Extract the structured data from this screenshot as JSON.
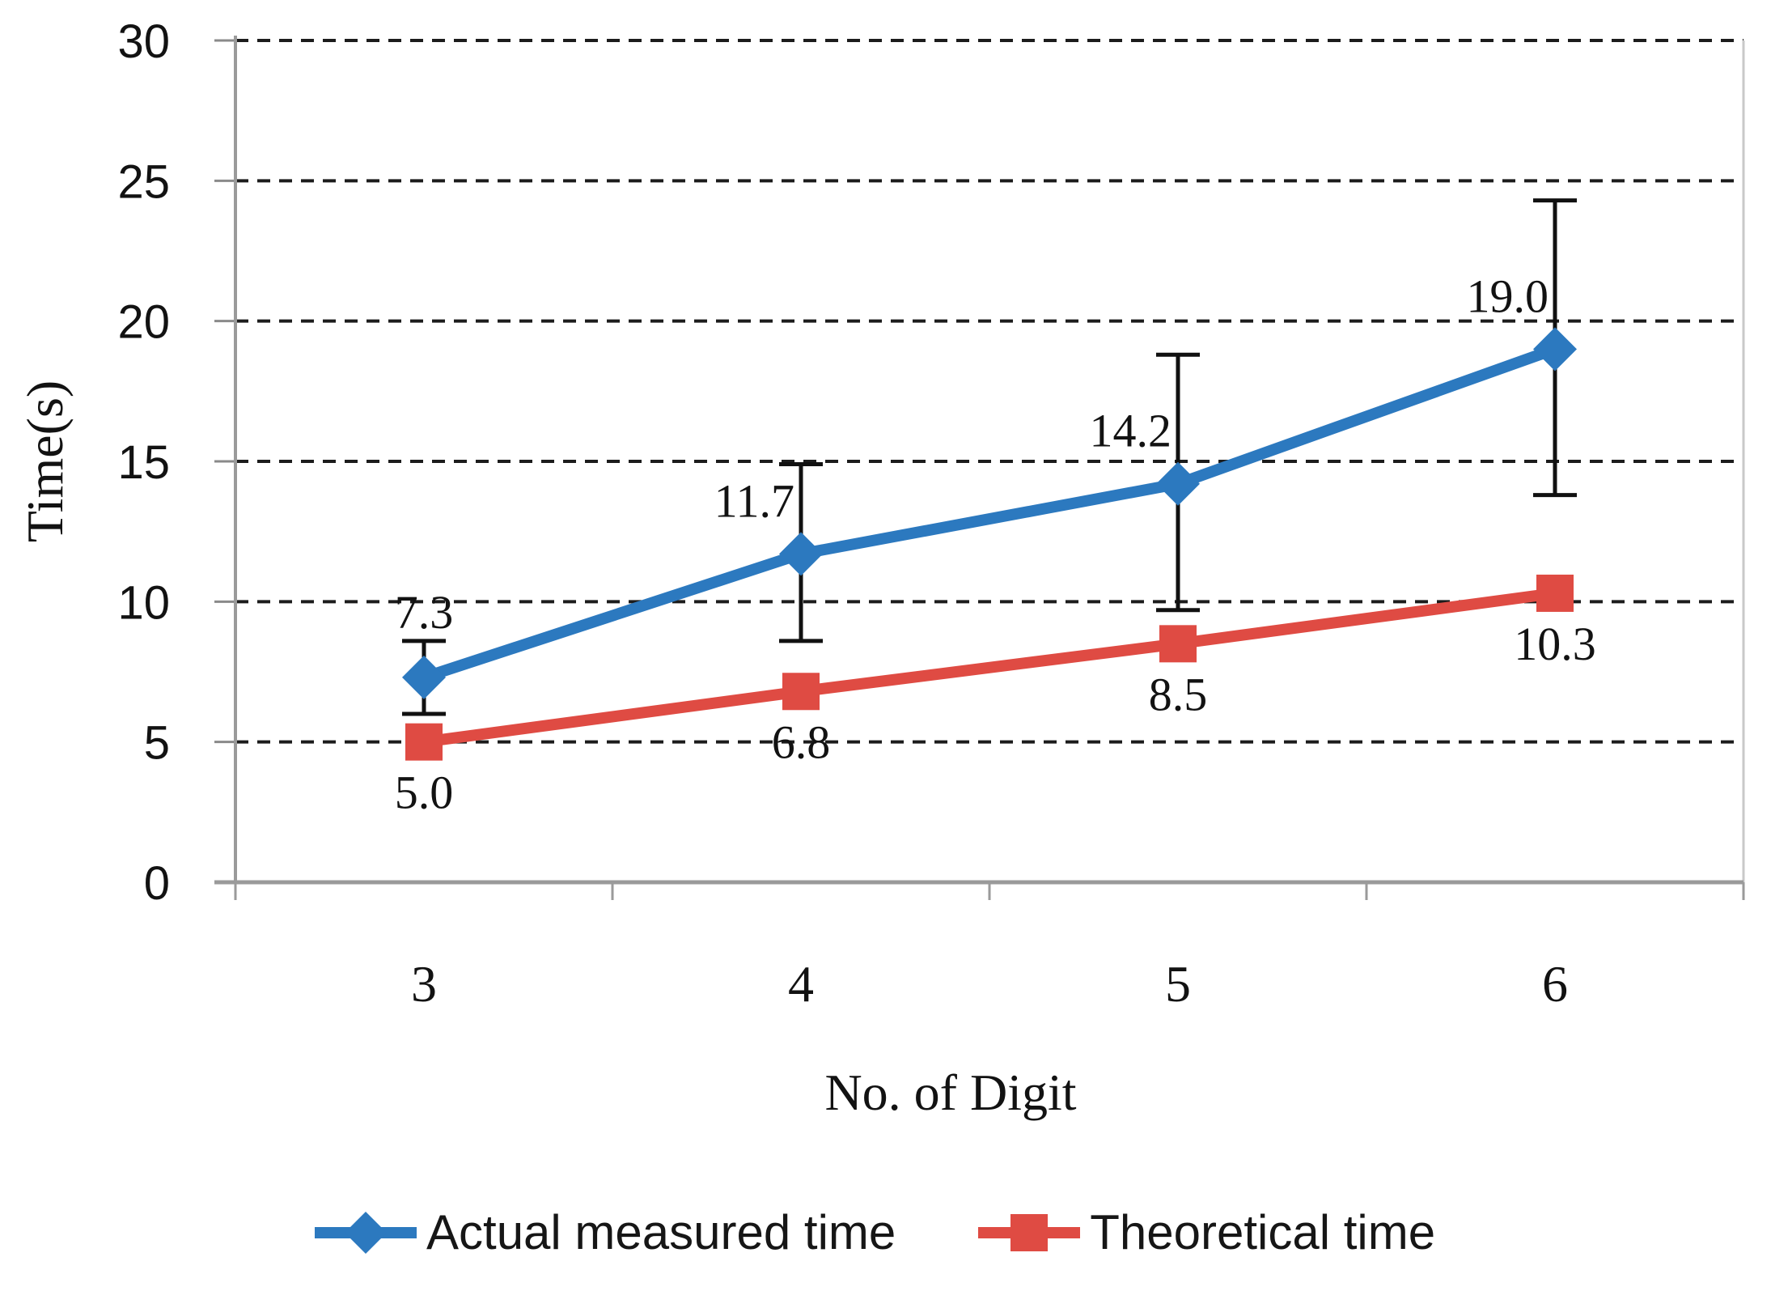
{
  "chart_data": {
    "type": "line",
    "title": "",
    "xlabel": "No. of Digit",
    "ylabel": "Time(s)",
    "categories": [
      "3",
      "4",
      "5",
      "6"
    ],
    "y_ticks": [
      0,
      5,
      10,
      15,
      20,
      25,
      30
    ],
    "ylim": [
      0,
      30
    ],
    "grid": "horizontal dashed black lines every 5 units",
    "legend_position": "bottom",
    "plot_border": "gray left/bottom axis, light gray right border",
    "series": [
      {
        "name": "Actual measured time",
        "marker": "diamond",
        "color": "#2C79BF",
        "values": [
          7.3,
          11.7,
          14.2,
          19.0
        ],
        "data_labels": [
          "7.3",
          "11.7",
          "14.2",
          "19.0"
        ],
        "label_placement": [
          "above",
          "above-left",
          "above-left",
          "above-left"
        ],
        "error_plus": [
          1.3,
          3.2,
          4.6,
          5.3
        ],
        "error_minus": [
          1.3,
          3.1,
          4.5,
          5.2
        ],
        "error_bar_color": "#111111"
      },
      {
        "name": "Theoretical time",
        "marker": "square",
        "color": "#DF4B43",
        "values": [
          5.0,
          6.8,
          8.5,
          10.3
        ],
        "data_labels": [
          "5.0",
          "6.8",
          "8.5",
          "10.3"
        ],
        "label_placement": [
          "below",
          "below",
          "below",
          "below"
        ]
      }
    ]
  }
}
